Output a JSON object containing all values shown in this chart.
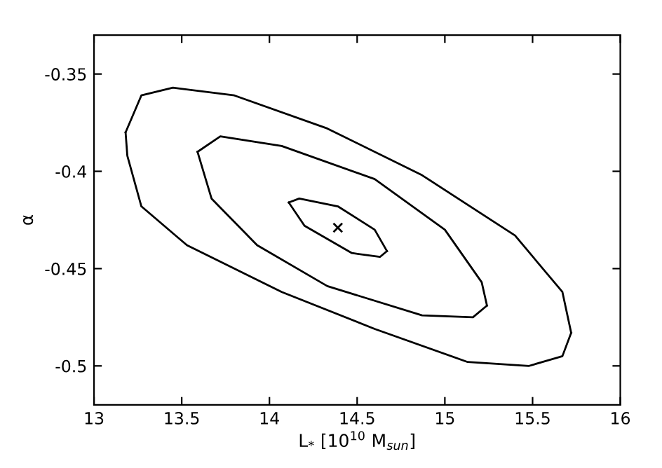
{
  "chart_data": {
    "type": "line",
    "xlabel": "L$_{*}$ [10$^{10}$ M$_{sun}$]",
    "ylabel": "α",
    "xlim": [
      13,
      16
    ],
    "ylim": [
      -0.52,
      -0.33
    ],
    "xticks": [
      13,
      13.5,
      14,
      14.5,
      15,
      15.5,
      16
    ],
    "yticks": [
      -0.35,
      -0.4,
      -0.45,
      -0.5
    ],
    "series": [
      {
        "color": "#000000",
        "x": [
          13.18,
          13.27,
          13.45,
          13.8,
          14.33,
          14.87,
          15.4,
          15.67,
          15.72
        ],
        "values": [
          -0.38,
          -0.361,
          -0.357,
          -0.361,
          -0.378,
          -0.402,
          -0.433,
          -0.462,
          -0.483
        ]
      },
      {
        "color": "#000000",
        "x": [
          13.18,
          13.19,
          13.27,
          13.53,
          14.07,
          14.6,
          15.13,
          15.48,
          15.67,
          15.72
        ],
        "values": [
          -0.38,
          -0.392,
          -0.418,
          -0.438,
          -0.462,
          -0.481,
          -0.498,
          -0.5,
          -0.495,
          -0.483
        ]
      },
      {
        "color": "#000000",
        "x": [
          13.59,
          13.72,
          14.07,
          14.6,
          15.0,
          15.21,
          15.24
        ],
        "values": [
          -0.39,
          -0.382,
          -0.387,
          -0.404,
          -0.43,
          -0.457,
          -0.469
        ]
      },
      {
        "color": "#000000",
        "x": [
          13.59,
          13.67,
          13.93,
          14.33,
          14.87,
          15.16,
          15.24
        ],
        "values": [
          -0.39,
          -0.414,
          -0.438,
          -0.459,
          -0.474,
          -0.475,
          -0.469
        ]
      },
      {
        "color": "#000000",
        "x": [
          14.11,
          14.17,
          14.39,
          14.6,
          14.67
        ],
        "values": [
          -0.416,
          -0.414,
          -0.418,
          -0.43,
          -0.441
        ]
      },
      {
        "color": "#000000",
        "x": [
          14.11,
          14.2,
          14.47,
          14.63,
          14.67
        ],
        "values": [
          -0.416,
          -0.428,
          -0.442,
          -0.444,
          -0.441
        ]
      },
      {
        "type": "scatter",
        "marker": "cross",
        "color": "#000000",
        "x": [
          14.39
        ],
        "values": [
          -0.429
        ]
      }
    ]
  }
}
